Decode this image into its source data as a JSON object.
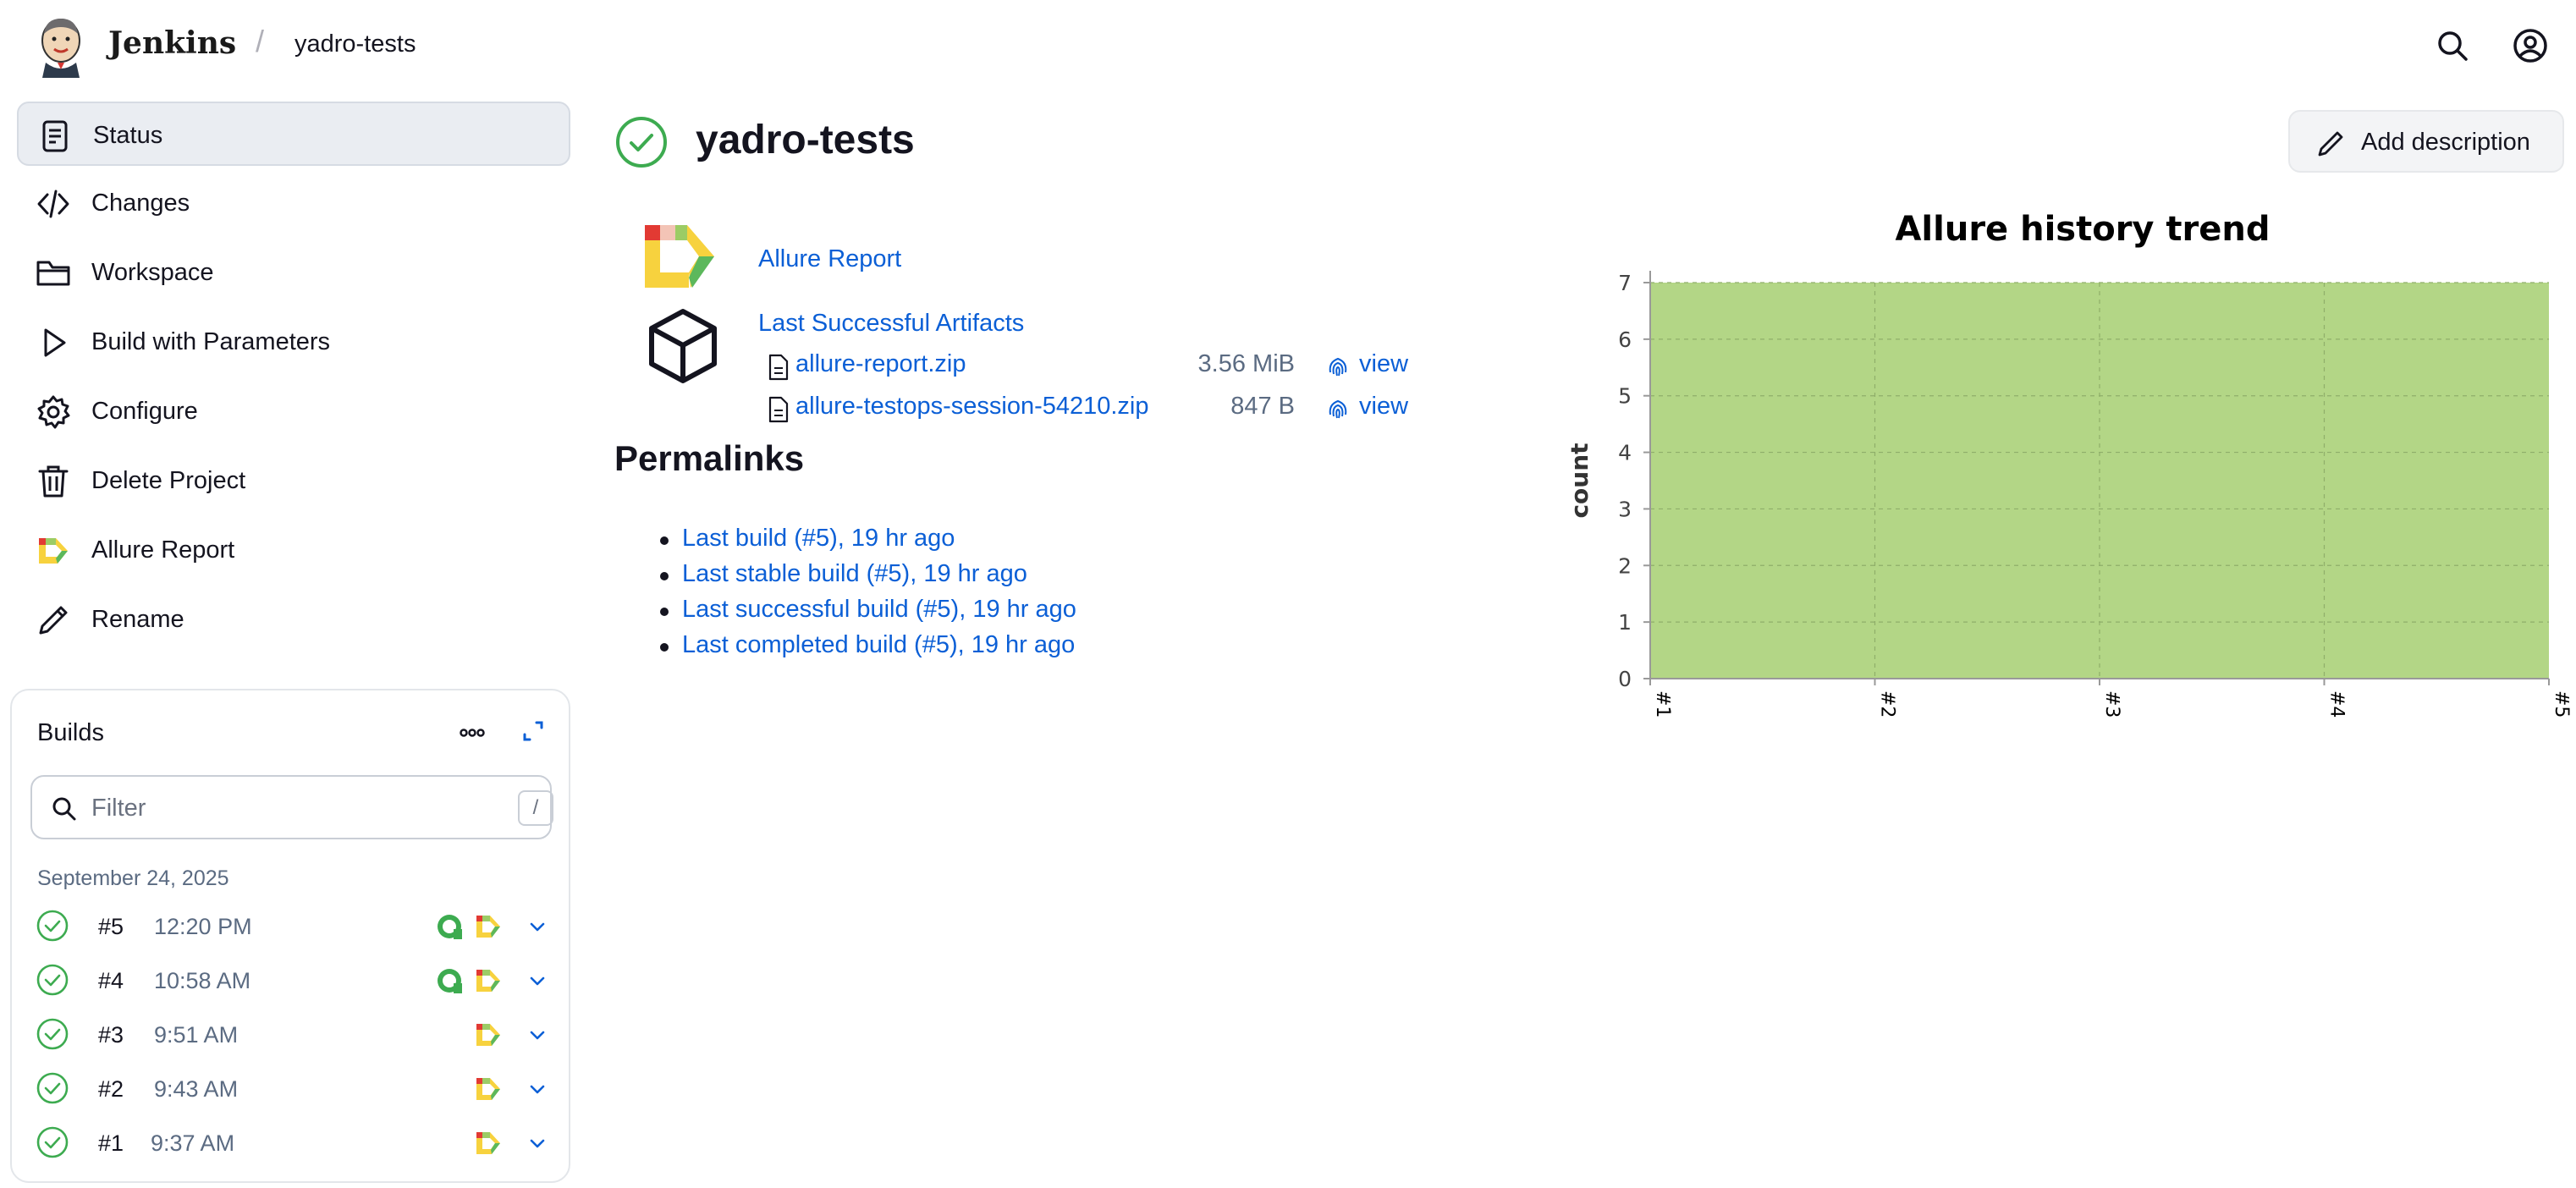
{
  "header": {
    "brand": "Jenkins",
    "breadcrumb_separator": "/",
    "breadcrumb": "yadro-tests",
    "icons": [
      "jenkins-logo-icon",
      "search-icon",
      "user-account-icon"
    ]
  },
  "sidebar": {
    "items": [
      {
        "label": "Status",
        "icon": "status-document-icon",
        "active": true
      },
      {
        "label": "Changes",
        "icon": "code-icon",
        "active": false
      },
      {
        "label": "Workspace",
        "icon": "folder-icon",
        "active": false
      },
      {
        "label": "Build with Parameters",
        "icon": "play-icon",
        "active": false
      },
      {
        "label": "Configure",
        "icon": "gear-icon",
        "active": false
      },
      {
        "label": "Delete Project",
        "icon": "trash-icon",
        "active": false
      },
      {
        "label": "Allure Report",
        "icon": "allure-logo-icon",
        "active": false
      },
      {
        "label": "Rename",
        "icon": "pencil-icon",
        "active": false
      }
    ]
  },
  "builds": {
    "title": "Builds",
    "filter_placeholder": "Filter",
    "filter_shortcut": "/",
    "date": "September 24, 2025",
    "rows": [
      {
        "number": "#5",
        "time": "12:20 PM",
        "status": "success",
        "testops": true,
        "allure": true
      },
      {
        "number": "#4",
        "time": "10:58 AM",
        "status": "success",
        "testops": true,
        "allure": true
      },
      {
        "number": "#3",
        "time": "9:51 AM",
        "status": "success",
        "testops": false,
        "allure": true
      },
      {
        "number": "#2",
        "time": "9:43 AM",
        "status": "success",
        "testops": false,
        "allure": true
      },
      {
        "number": "#1",
        "time": "9:37 AM",
        "status": "success",
        "testops": false,
        "allure": true
      }
    ]
  },
  "main": {
    "title": "yadro-tests",
    "status": "success",
    "add_description": "Add description",
    "allure_report_link": "Allure Report",
    "last_successful_artifacts": "Last Successful Artifacts",
    "artifacts": [
      {
        "name": "allure-report.zip",
        "size": "3.56 MiB",
        "view": "view"
      },
      {
        "name": "allure-testops-session-54210.zip",
        "size": "847 B",
        "view": "view"
      }
    ],
    "permalinks_heading": "Permalinks",
    "permalinks": [
      "Last build (#5), 19 hr ago",
      "Last stable build (#5), 19 hr ago",
      "Last successful build (#5), 19 hr ago",
      "Last completed build (#5), 19 hr ago"
    ]
  },
  "colors": {
    "accent_link": "#0b5fd6",
    "success": "#3dab50",
    "chart_fill": "#b3d686"
  },
  "chart_data": {
    "type": "area",
    "title": "Allure history trend",
    "xlabel": "",
    "ylabel": "count",
    "categories": [
      "#1",
      "#2",
      "#3",
      "#4",
      "#5"
    ],
    "series": [
      {
        "values": [
          7,
          7,
          7,
          7,
          7
        ],
        "color": "#b3d686"
      }
    ],
    "ylim": [
      0,
      7
    ],
    "yticks": [
      "0",
      "1",
      "2",
      "3",
      "4",
      "5",
      "6",
      "7"
    ],
    "grid": true,
    "legend": "none"
  }
}
